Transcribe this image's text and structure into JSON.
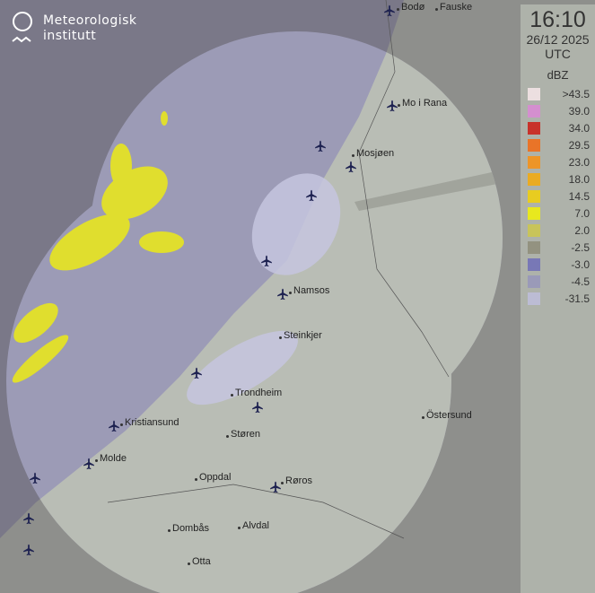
{
  "logo": {
    "line1": "Meteorologisk",
    "line2": "institutt"
  },
  "legend": {
    "time": "16:10",
    "date": "26/12 2025",
    "timezone": "UTC",
    "unit": "dBZ",
    "levels": [
      {
        "label": ">43.5",
        "color": "#ecdfe0"
      },
      {
        "label": "39.0",
        "color": "#d48fcf"
      },
      {
        "label": "34.0",
        "color": "#c8322a"
      },
      {
        "label": "29.5",
        "color": "#e97428"
      },
      {
        "label": "23.0",
        "color": "#ed9528"
      },
      {
        "label": "18.0",
        "color": "#eaab22"
      },
      {
        "label": "14.5",
        "color": "#e8cc20"
      },
      {
        "label": "7.0",
        "color": "#e8e81e"
      },
      {
        "label": "2.0",
        "color": "#c8c45a"
      },
      {
        "label": "-2.5",
        "color": "#939280"
      },
      {
        "label": "-3.0",
        "color": "#7878b6"
      },
      {
        "label": "-4.5",
        "color": "#9a9ab8"
      },
      {
        "label": "-31.5",
        "color": "#bcbcd4"
      }
    ]
  },
  "cities": [
    "Bodø",
    "Fauske",
    "Mo i Rana",
    "Mosjøen",
    "Namsos",
    "Steinkjer",
    "Trondheim",
    "Östersund",
    "Kristiansund",
    "Molde",
    "Støren",
    "Oppdal",
    "Røros",
    "Dombås",
    "Alvdal",
    "Otta"
  ],
  "colors": {
    "sea": "#7a7888",
    "land": "#8e8f8c",
    "radar_land": "#b9bdb5",
    "radar_sea": "#9c9bb6",
    "lakes": "#7b7c95"
  }
}
